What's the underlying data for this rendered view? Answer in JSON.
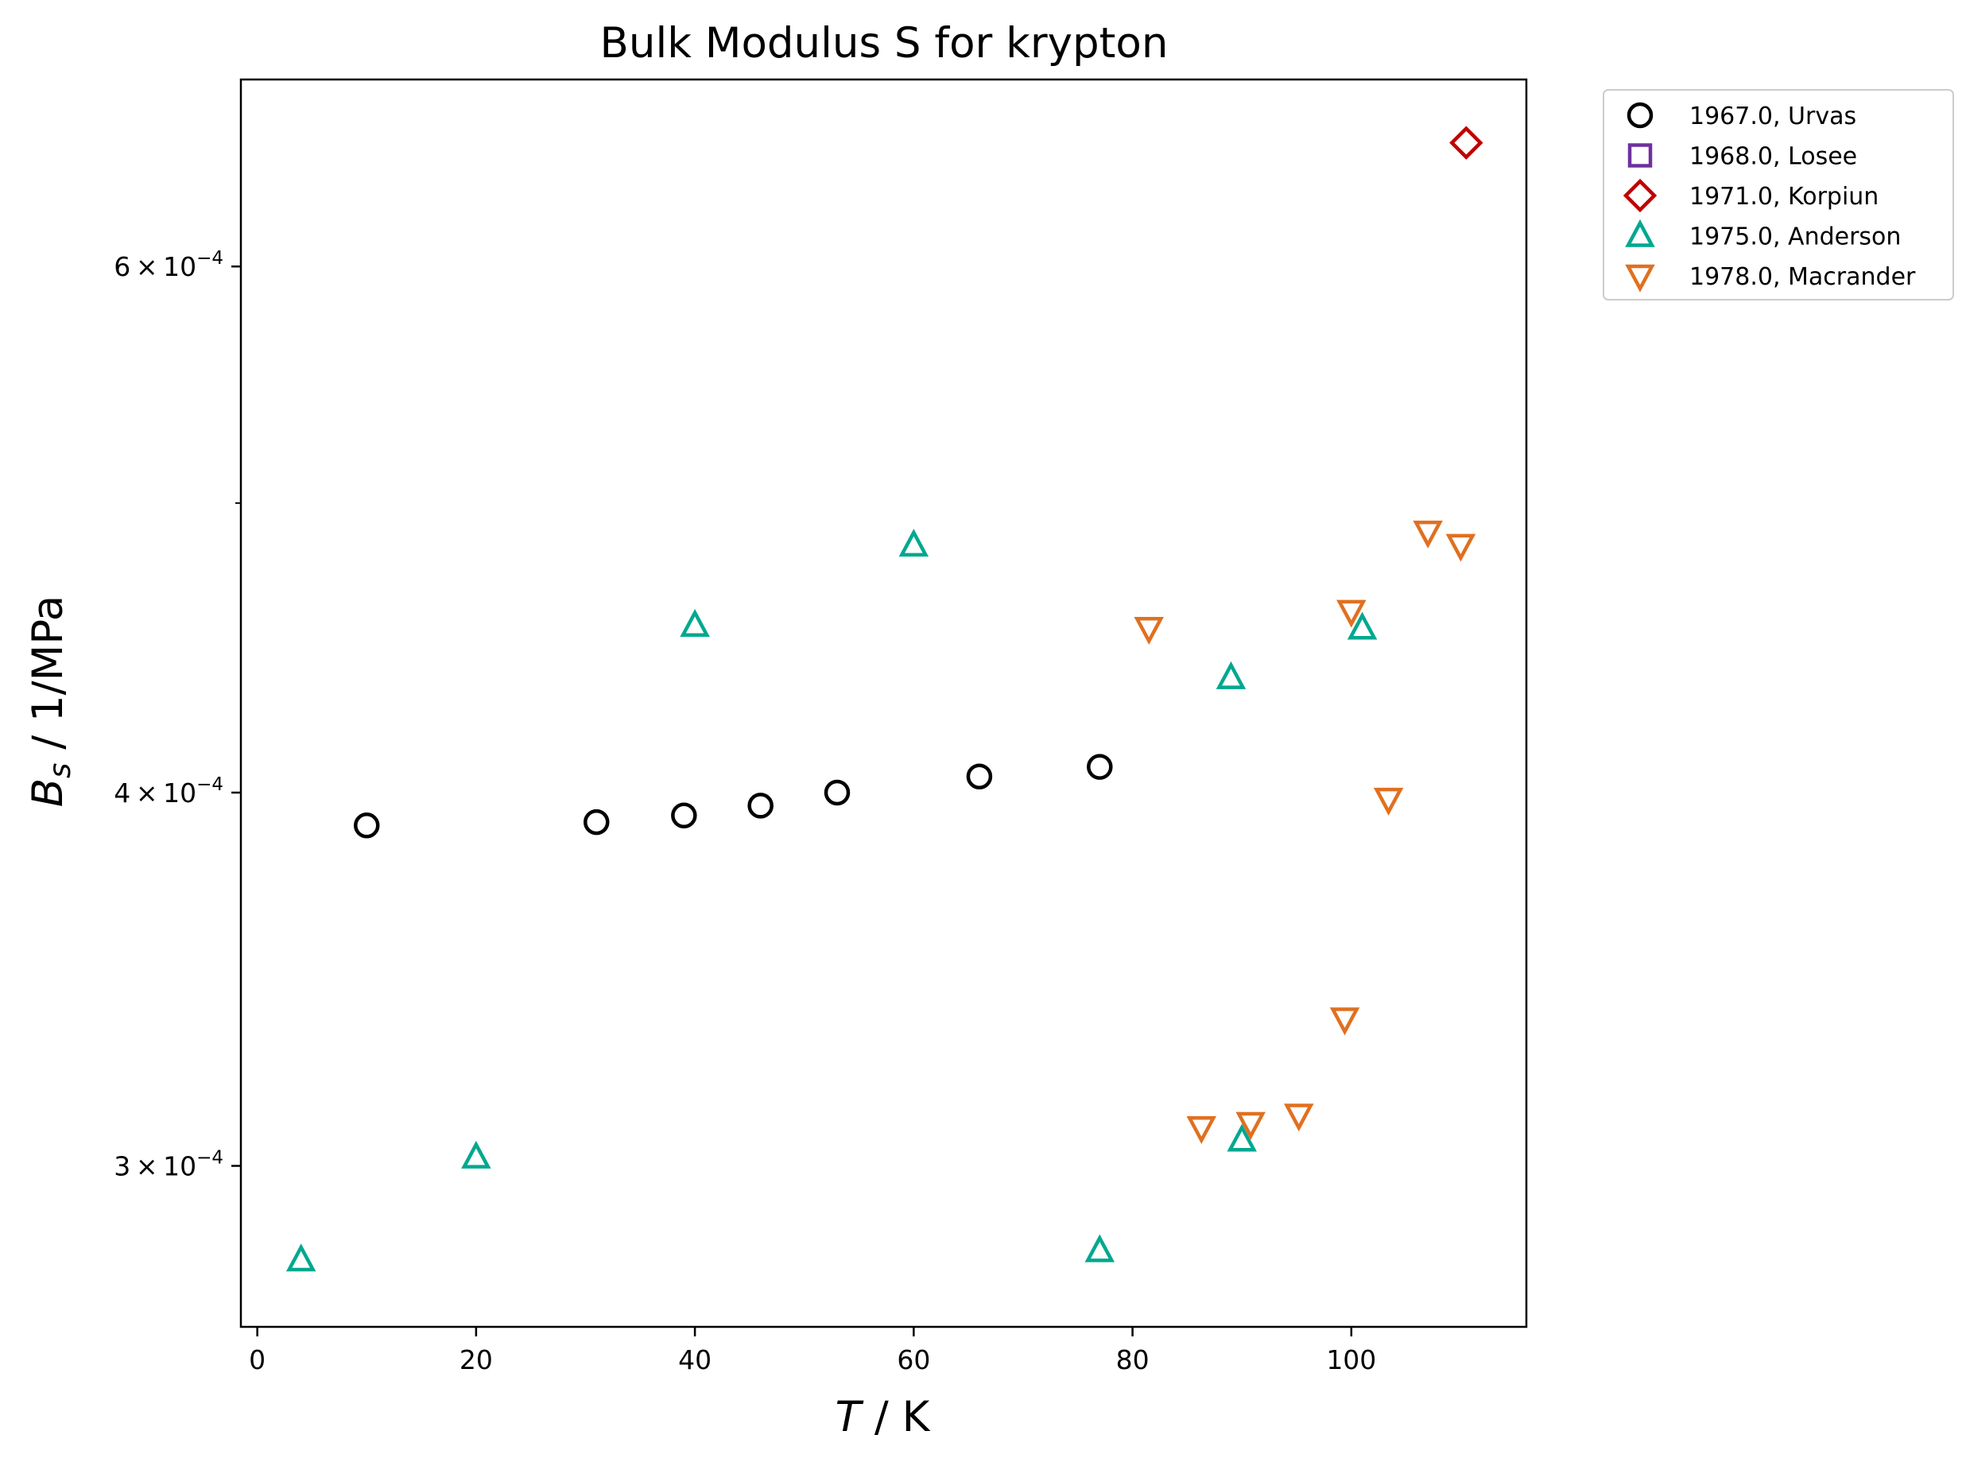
{
  "chart_data": {
    "type": "scatter",
    "title": "Bulk Modulus S for krypton",
    "xlabel": "T / K",
    "ylabel": "B_s / 1/MPa",
    "xlim": [
      -1.5,
      116
    ],
    "ylim": [
      0.000265,
      0.000693
    ],
    "yscale": "log",
    "xticks": [
      0,
      20,
      40,
      60,
      80,
      100
    ],
    "xtick_labels": [
      "0",
      "20",
      "40",
      "60",
      "80",
      "100"
    ],
    "yticks_major": [
      0.0003,
      0.0004,
      0.0006
    ],
    "ytick_labels": [
      {
        "mantissa": "3",
        "times": "×",
        "base": "10",
        "exponent": "−4"
      },
      {
        "mantissa": "4",
        "times": "×",
        "base": "10",
        "exponent": "−4"
      },
      {
        "mantissa": "6",
        "times": "×",
        "base": "10",
        "exponent": "−4"
      }
    ],
    "yticks_minor": [
      0.0005
    ],
    "grid": false,
    "legend_position": "outside-top-right",
    "series": [
      {
        "name": "1967.0, Urvas",
        "marker": "circle",
        "color": "#000000",
        "points": [
          [
            10,
            0.00039
          ],
          [
            31,
            0.000391
          ],
          [
            39,
            0.000393
          ],
          [
            46,
            0.000396
          ],
          [
            53,
            0.0004
          ],
          [
            66,
            0.000405
          ],
          [
            77,
            0.000408
          ]
        ]
      },
      {
        "name": "1968.0, Losee",
        "marker": "square",
        "color": "#7030a0",
        "points": []
      },
      {
        "name": "1971.0, Korpiun",
        "marker": "diamond",
        "color": "#c00000",
        "points": [
          [
            110.5,
            0.00066
          ]
        ]
      },
      {
        "name": "1975.0, Anderson",
        "marker": "triangle-up",
        "color": "#00a88f",
        "points": [
          [
            4,
            0.000279
          ],
          [
            20,
            0.000302
          ],
          [
            40,
            0.000455
          ],
          [
            60,
            0.000484
          ],
          [
            77,
            0.000281
          ],
          [
            89,
            0.000437
          ],
          [
            90,
            0.000306
          ],
          [
            101,
            0.000454
          ]
        ]
      },
      {
        "name": "1978.0, Macrander",
        "marker": "triangle-down",
        "color": "#e07020",
        "points": [
          [
            81.5,
            0.000454
          ],
          [
            86.3,
            0.000309
          ],
          [
            90.8,
            0.00031
          ],
          [
            95.2,
            0.000312
          ],
          [
            99.4,
            0.000336
          ],
          [
            100,
            0.00046
          ],
          [
            103.4,
            0.000398
          ],
          [
            107,
            0.000489
          ],
          [
            110,
            0.000484
          ]
        ]
      }
    ]
  }
}
